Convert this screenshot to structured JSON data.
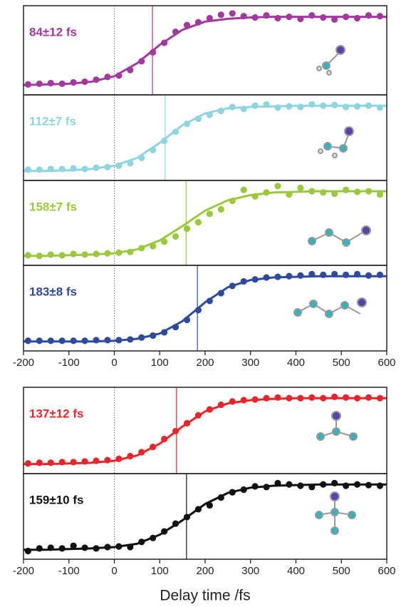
{
  "chart_data": [
    {
      "type": "scatter",
      "label": "84±12 fs",
      "color": "#a2399f",
      "time_constant": 84,
      "x": [
        -190,
        -165,
        -140,
        -115,
        -90,
        -65,
        -40,
        -15,
        10,
        35,
        60,
        85,
        110,
        135,
        160,
        185,
        210,
        235,
        260,
        285,
        310,
        335,
        360,
        385,
        410,
        435,
        460,
        485,
        510,
        535,
        560,
        585
      ],
      "values": [
        0.01,
        0.02,
        0.03,
        0.02,
        0.04,
        0.05,
        0.08,
        0.12,
        0.14,
        0.22,
        0.35,
        0.48,
        0.62,
        0.78,
        0.88,
        0.92,
        0.98,
        1.03,
        1.05,
        1.01,
        0.99,
        1.02,
        0.98,
        1.0,
        0.97,
        1.02,
        0.99,
        0.96,
        1.0,
        0.98,
        1.02,
        1.01
      ],
      "fit_x": [
        -200,
        -150,
        -100,
        -50,
        0,
        50,
        100,
        150,
        200,
        250,
        300,
        350,
        400,
        450,
        500,
        550,
        600
      ],
      "fit_values": [
        0,
        0.01,
        0.02,
        0.05,
        0.13,
        0.32,
        0.59,
        0.81,
        0.93,
        0.97,
        0.99,
        1,
        1,
        1,
        1,
        1,
        1
      ],
      "xlim": [
        -200,
        600
      ],
      "ylim": [
        -0.08,
        1.1
      ]
    },
    {
      "type": "scatter",
      "label": "112±7 fs",
      "color": "#8fd5e0",
      "time_constant": 112,
      "x": [
        -190,
        -165,
        -140,
        -115,
        -90,
        -65,
        -40,
        -15,
        10,
        35,
        60,
        85,
        110,
        135,
        160,
        185,
        210,
        235,
        260,
        285,
        310,
        335,
        360,
        385,
        410,
        435,
        460,
        485,
        510,
        535,
        560,
        585
      ],
      "values": [
        0.02,
        0.02,
        0.03,
        0.03,
        0.04,
        0.03,
        0.05,
        0.06,
        0.08,
        0.12,
        0.2,
        0.32,
        0.46,
        0.6,
        0.72,
        0.8,
        0.86,
        0.92,
        0.98,
        0.95,
        1.0,
        1.02,
        0.97,
        0.99,
        0.98,
        1.02,
        1.0,
        1.01,
        0.98,
        0.99,
        1.0,
        0.97
      ],
      "fit_x": [
        -200,
        -150,
        -100,
        -50,
        0,
        50,
        100,
        150,
        200,
        250,
        300,
        350,
        400,
        450,
        500,
        550,
        600
      ],
      "fit_values": [
        0,
        0,
        0.01,
        0.03,
        0.08,
        0.2,
        0.43,
        0.7,
        0.88,
        0.96,
        0.98,
        0.99,
        1,
        1,
        1,
        1,
        1
      ],
      "xlim": [
        -200,
        600
      ],
      "ylim": [
        -0.08,
        1.1
      ]
    },
    {
      "type": "scatter",
      "label": "158±7 fs",
      "color": "#9aca3c",
      "time_constant": 158,
      "x": [
        -190,
        -165,
        -140,
        -115,
        -90,
        -65,
        -40,
        -15,
        10,
        35,
        60,
        85,
        110,
        135,
        160,
        185,
        210,
        235,
        260,
        285,
        310,
        335,
        360,
        385,
        410,
        435,
        460,
        485,
        510,
        535,
        560,
        585
      ],
      "values": [
        0.01,
        0.0,
        0.02,
        0.01,
        0.03,
        0.02,
        0.03,
        0.04,
        0.05,
        0.06,
        0.12,
        0.15,
        0.22,
        0.3,
        0.42,
        0.52,
        0.65,
        0.72,
        0.85,
        1.02,
        0.92,
        0.98,
        1.08,
        0.95,
        1.05,
        1.0,
        0.98,
        0.96,
        1.02,
        0.99,
        1.0,
        0.95
      ],
      "fit_x": [
        -200,
        -150,
        -100,
        -50,
        0,
        50,
        100,
        150,
        200,
        250,
        300,
        350,
        400,
        450,
        500,
        550,
        600
      ],
      "fit_values": [
        0,
        0,
        0.01,
        0.02,
        0.04,
        0.1,
        0.24,
        0.46,
        0.7,
        0.86,
        0.94,
        0.98,
        0.99,
        1,
        1,
        1,
        1
      ],
      "xlim": [
        -200,
        600
      ],
      "ylim": [
        -0.08,
        1.1
      ]
    },
    {
      "type": "scatter",
      "label": "183±8 fs",
      "color": "#2e4a9e",
      "time_constant": 183,
      "x": [
        -190,
        -165,
        -140,
        -115,
        -90,
        -65,
        -40,
        -15,
        10,
        35,
        60,
        85,
        110,
        135,
        160,
        185,
        210,
        235,
        260,
        285,
        310,
        335,
        360,
        385,
        410,
        435,
        460,
        485,
        510,
        535,
        560,
        585
      ],
      "values": [
        0.01,
        0.01,
        0.01,
        0.01,
        0.01,
        0.01,
        0.02,
        0.02,
        0.02,
        0.03,
        0.06,
        0.09,
        0.14,
        0.22,
        0.33,
        0.48,
        0.62,
        0.74,
        0.85,
        0.92,
        0.95,
        0.98,
        0.99,
        1.0,
        1.01,
        1.03,
        1.02,
        1.03,
        1.02,
        1.03,
        1.01,
        1.02
      ],
      "fit_x": [
        -200,
        -150,
        -100,
        -50,
        0,
        50,
        100,
        150,
        200,
        250,
        300,
        350,
        400,
        450,
        500,
        550,
        600
      ],
      "fit_values": [
        0,
        0,
        0,
        0,
        0.01,
        0.04,
        0.12,
        0.31,
        0.6,
        0.83,
        0.94,
        0.98,
        0.99,
        1,
        1,
        1,
        1
      ],
      "xlim": [
        -200,
        600
      ],
      "ylim": [
        -0.08,
        1.1
      ],
      "xticks": [
        -200,
        -100,
        0,
        100,
        200,
        300,
        400,
        500,
        600
      ]
    },
    {
      "type": "scatter",
      "label": "137±12 fs",
      "color": "#e8262a",
      "time_constant": 137,
      "x": [
        -190,
        -165,
        -140,
        -115,
        -90,
        -65,
        -40,
        -15,
        10,
        35,
        60,
        85,
        110,
        135,
        160,
        185,
        210,
        235,
        260,
        285,
        310,
        335,
        360,
        385,
        410,
        435,
        460,
        485,
        510,
        535,
        560,
        585
      ],
      "values": [
        0.01,
        0.02,
        0.02,
        0.03,
        0.03,
        0.04,
        0.05,
        0.06,
        0.08,
        0.12,
        0.18,
        0.26,
        0.38,
        0.5,
        0.62,
        0.74,
        0.83,
        0.9,
        0.95,
        0.97,
        0.98,
        1.0,
        1.01,
        1.0,
        1.0,
        1.01,
        1.0,
        1.02,
        1.01,
        1.0,
        1.01,
        1.0
      ],
      "fit_x": [
        -200,
        -150,
        -100,
        -50,
        0,
        50,
        100,
        150,
        200,
        250,
        300,
        350,
        400,
        450,
        500,
        550,
        600
      ],
      "fit_values": [
        0,
        0,
        0.01,
        0.02,
        0.05,
        0.13,
        0.31,
        0.57,
        0.8,
        0.92,
        0.97,
        0.99,
        1,
        1,
        1,
        1,
        1
      ],
      "xlim": [
        -200,
        600
      ],
      "ylim": [
        -0.08,
        1.1
      ]
    },
    {
      "type": "scatter",
      "label": "159±10 fs",
      "color": "#111111",
      "time_constant": 159,
      "x": [
        -190,
        -165,
        -140,
        -115,
        -90,
        -65,
        -40,
        -15,
        10,
        35,
        60,
        85,
        110,
        135,
        160,
        185,
        210,
        235,
        260,
        285,
        310,
        335,
        360,
        385,
        410,
        435,
        460,
        485,
        510,
        535,
        560,
        585
      ],
      "values": [
        -0.02,
        0.02,
        0.03,
        0.02,
        0.06,
        0.03,
        0.02,
        0.04,
        0.05,
        0.04,
        0.12,
        0.18,
        0.28,
        0.4,
        0.5,
        0.62,
        0.68,
        0.8,
        0.88,
        0.92,
        0.97,
        0.96,
        1.02,
        1.0,
        0.98,
        0.96,
        1.0,
        1.02,
        0.98,
        1.0,
        0.99,
        0.98
      ],
      "fit_x": [
        -200,
        -150,
        -100,
        -50,
        0,
        50,
        100,
        150,
        200,
        250,
        300,
        350,
        400,
        450,
        500,
        550,
        600
      ],
      "fit_values": [
        0,
        0,
        0.01,
        0.02,
        0.04,
        0.09,
        0.23,
        0.45,
        0.7,
        0.87,
        0.95,
        0.98,
        0.99,
        1,
        1,
        1,
        1
      ],
      "xlim": [
        -200,
        600
      ],
      "ylim": [
        -0.08,
        1.1
      ],
      "xticks": [
        -200,
        -100,
        0,
        100,
        200,
        300,
        400,
        500,
        600
      ],
      "xlabel": "Delay time /fs"
    }
  ]
}
